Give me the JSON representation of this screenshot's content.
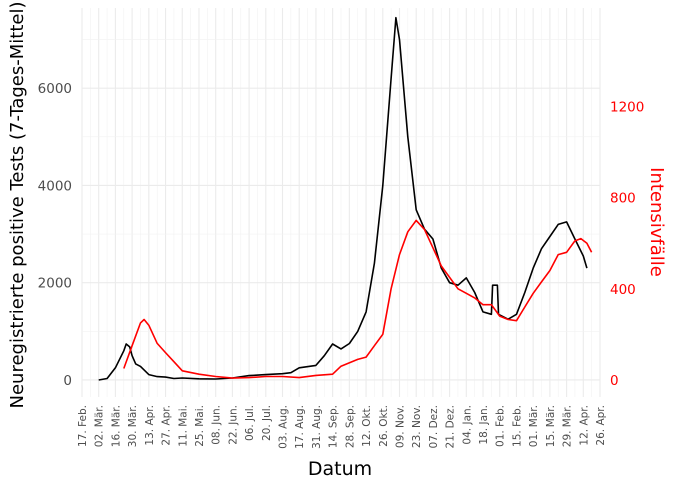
{
  "chart_data": {
    "type": "line",
    "xlabel": "Datum",
    "ylabel_left": "Neuregistrierte positive Tests (7-Tages-Mittel)",
    "ylabel_right": "Intensivfälle",
    "x_range": [
      "2020-02-17",
      "2021-04-26"
    ],
    "x_ticks": [
      "17. Feb.",
      "02. Mär.",
      "16. Mär.",
      "30. Mär.",
      "13. Apr.",
      "27. Apr.",
      "11. Mai.",
      "25. Mai.",
      "08. Jun.",
      "22. Jun.",
      "06. Jul.",
      "20. Jul.",
      "03. Aug.",
      "17. Aug.",
      "31. Aug.",
      "14. Sep.",
      "28. Sep.",
      "12. Okt.",
      "26. Okt.",
      "09. Nov.",
      "23. Nov.",
      "07. Dez.",
      "21. Dez.",
      "04. Jan.",
      "18. Jan.",
      "01. Feb.",
      "15. Feb.",
      "01. Mär.",
      "15. Mär.",
      "29. Mär.",
      "12. Apr.",
      "26. Apr."
    ],
    "y_left_ticks": [
      "0",
      "2000",
      "4000",
      "6000"
    ],
    "y_left_range": [
      -350,
      7650
    ],
    "y_right_ticks": [
      "0",
      "400",
      "800",
      "1200"
    ],
    "y_right_range": [
      -75,
      1632
    ],
    "grid": true,
    "legend": "none",
    "series": [
      {
        "axis": "left",
        "color": "#000000",
        "points": [
          [
            "2020-03-02",
            0
          ],
          [
            "2020-03-09",
            30
          ],
          [
            "2020-03-16",
            250
          ],
          [
            "2020-03-23",
            600
          ],
          [
            "2020-03-25",
            740
          ],
          [
            "2020-03-28",
            680
          ],
          [
            "2020-03-30",
            500
          ],
          [
            "2020-04-02",
            330
          ],
          [
            "2020-04-06",
            280
          ],
          [
            "2020-04-13",
            110
          ],
          [
            "2020-04-20",
            70
          ],
          [
            "2020-04-27",
            60
          ],
          [
            "2020-05-04",
            30
          ],
          [
            "2020-05-11",
            40
          ],
          [
            "2020-05-25",
            25
          ],
          [
            "2020-06-08",
            20
          ],
          [
            "2020-06-22",
            40
          ],
          [
            "2020-07-06",
            90
          ],
          [
            "2020-07-20",
            110
          ],
          [
            "2020-08-03",
            130
          ],
          [
            "2020-08-10",
            150
          ],
          [
            "2020-08-17",
            250
          ],
          [
            "2020-08-31",
            300
          ],
          [
            "2020-09-07",
            500
          ],
          [
            "2020-09-14",
            740
          ],
          [
            "2020-09-21",
            640
          ],
          [
            "2020-09-28",
            750
          ],
          [
            "2020-10-05",
            1000
          ],
          [
            "2020-10-12",
            1400
          ],
          [
            "2020-10-19",
            2400
          ],
          [
            "2020-10-26",
            4000
          ],
          [
            "2020-11-02",
            6200
          ],
          [
            "2020-11-06",
            7450
          ],
          [
            "2020-11-09",
            7000
          ],
          [
            "2020-11-16",
            5000
          ],
          [
            "2020-11-23",
            3500
          ],
          [
            "2020-11-30",
            3100
          ],
          [
            "2020-12-07",
            2900
          ],
          [
            "2020-12-14",
            2300
          ],
          [
            "2020-12-21",
            2000
          ],
          [
            "2020-12-28",
            1950
          ],
          [
            "2021-01-04",
            2100
          ],
          [
            "2021-01-11",
            1800
          ],
          [
            "2021-01-18",
            1400
          ],
          [
            "2021-01-25",
            1350
          ],
          [
            "2021-01-26",
            1950
          ],
          [
            "2021-01-30",
            1950
          ],
          [
            "2021-01-31",
            1350
          ],
          [
            "2021-02-08",
            1250
          ],
          [
            "2021-02-15",
            1350
          ],
          [
            "2021-02-22",
            1800
          ],
          [
            "2021-03-01",
            2300
          ],
          [
            "2021-03-08",
            2700
          ],
          [
            "2021-03-15",
            2950
          ],
          [
            "2021-03-22",
            3200
          ],
          [
            "2021-03-29",
            3250
          ],
          [
            "2021-04-05",
            2900
          ],
          [
            "2021-04-12",
            2550
          ],
          [
            "2021-04-15",
            2300
          ]
        ]
      },
      {
        "axis": "right",
        "color": "#ff0000",
        "points": [
          [
            "2020-03-23",
            50
          ],
          [
            "2020-03-30",
            150
          ],
          [
            "2020-04-06",
            250
          ],
          [
            "2020-04-09",
            265
          ],
          [
            "2020-04-13",
            240
          ],
          [
            "2020-04-20",
            160
          ],
          [
            "2020-04-27",
            120
          ],
          [
            "2020-05-04",
            80
          ],
          [
            "2020-05-11",
            40
          ],
          [
            "2020-05-25",
            25
          ],
          [
            "2020-06-08",
            15
          ],
          [
            "2020-06-22",
            8
          ],
          [
            "2020-07-06",
            10
          ],
          [
            "2020-07-20",
            15
          ],
          [
            "2020-08-03",
            15
          ],
          [
            "2020-08-17",
            10
          ],
          [
            "2020-08-31",
            20
          ],
          [
            "2020-09-14",
            25
          ],
          [
            "2020-09-21",
            60
          ],
          [
            "2020-10-05",
            90
          ],
          [
            "2020-10-12",
            100
          ],
          [
            "2020-10-19",
            150
          ],
          [
            "2020-10-26",
            200
          ],
          [
            "2020-11-02",
            400
          ],
          [
            "2020-11-09",
            550
          ],
          [
            "2020-11-16",
            650
          ],
          [
            "2020-11-23",
            700
          ],
          [
            "2020-11-30",
            660
          ],
          [
            "2020-12-07",
            580
          ],
          [
            "2020-12-14",
            500
          ],
          [
            "2020-12-21",
            450
          ],
          [
            "2020-12-28",
            400
          ],
          [
            "2021-01-04",
            380
          ],
          [
            "2021-01-11",
            360
          ],
          [
            "2021-01-18",
            330
          ],
          [
            "2021-01-25",
            330
          ],
          [
            "2021-02-01",
            280
          ],
          [
            "2021-02-08",
            265
          ],
          [
            "2021-02-15",
            260
          ],
          [
            "2021-02-22",
            320
          ],
          [
            "2021-03-01",
            380
          ],
          [
            "2021-03-08",
            430
          ],
          [
            "2021-03-15",
            480
          ],
          [
            "2021-03-22",
            550
          ],
          [
            "2021-03-29",
            560
          ],
          [
            "2021-04-05",
            610
          ],
          [
            "2021-04-10",
            620
          ],
          [
            "2021-04-15",
            600
          ],
          [
            "2021-04-19",
            560
          ]
        ]
      }
    ]
  }
}
